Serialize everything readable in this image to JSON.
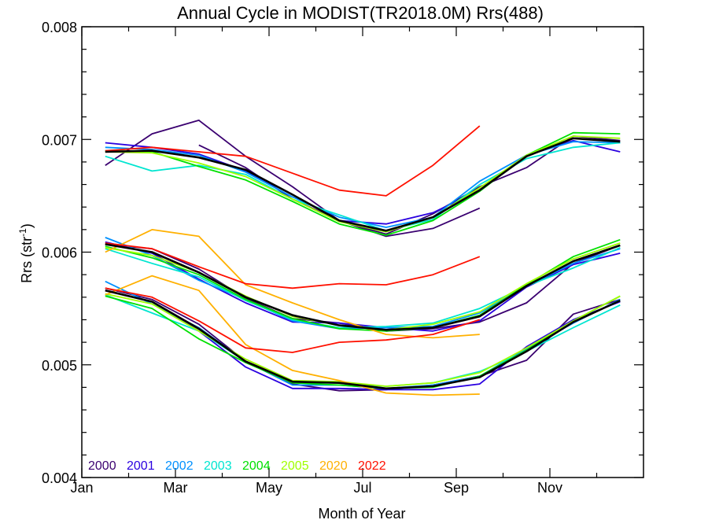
{
  "chart_data": {
    "type": "line",
    "title": "Annual Cycle in MODIST(TR2018.0M) Rrs(488)",
    "xlabel": "Month of Year",
    "ylabel": "Rrs (str",
    "ylabel_sup": "-1",
    "ylabel_close": ")",
    "xlim": [
      0,
      12
    ],
    "ylim": [
      0.004,
      0.008
    ],
    "x_ticks": [
      0,
      2,
      4,
      6,
      8,
      10
    ],
    "x_tick_labels": [
      "Jan",
      "Mar",
      "May",
      "Jul",
      "Sep",
      "Nov"
    ],
    "y_ticks": [
      0.004,
      0.005,
      0.006,
      0.007,
      0.008
    ],
    "y_tick_labels": [
      "0.004",
      "0.005",
      "0.006",
      "0.007",
      "0.008"
    ],
    "grid": false,
    "legend_position": "bottom-left",
    "legend": [
      {
        "name": "2000",
        "color": "#3a0070"
      },
      {
        "name": "2001",
        "color": "#2a00e0"
      },
      {
        "name": "2002",
        "color": "#0090ff"
      },
      {
        "name": "2003",
        "color": "#00e5d0"
      },
      {
        "name": "2004",
        "color": "#00e000"
      },
      {
        "name": "2005",
        "color": "#a0ff00"
      },
      {
        "name": "2020",
        "color": "#ffb000"
      },
      {
        "name": "2022",
        "color": "#ff1000"
      }
    ],
    "series": [
      {
        "group": "upper",
        "year": "2000",
        "color": "#3a0070",
        "x": [
          0.5,
          1.5,
          2.5,
          3.5,
          4.5,
          5.5,
          6.5,
          7.5,
          8.5,
          9.5,
          10.5,
          11.5
        ],
        "y": [
          0.00677,
          0.00705,
          0.00717,
          0.00685,
          0.00658,
          0.00628,
          0.00614,
          0.00621,
          0.00639,
          null,
          null,
          null
        ]
      },
      {
        "group": "upper",
        "year": "2000",
        "color": "#3a0070",
        "x": [
          2.5,
          3.5,
          4.5,
          5.5,
          6.5,
          7.5,
          8.5,
          9.5,
          10.5,
          11.5
        ],
        "y": [
          0.00695,
          0.00675,
          0.00647,
          0.00628,
          0.00616,
          0.00634,
          0.00658,
          0.00675,
          0.00703,
          0.00699
        ]
      },
      {
        "group": "upper",
        "year": "2001",
        "color": "#2a00e0",
        "x": [
          0.5,
          1.5,
          2.5,
          3.5,
          4.5,
          5.5,
          6.5,
          7.5,
          8.5,
          9.5,
          10.5,
          11.5
        ],
        "y": [
          0.00697,
          0.00693,
          0.00687,
          0.00672,
          0.00651,
          0.00628,
          0.00625,
          0.00635,
          0.00655,
          0.00686,
          0.00699,
          0.00689
        ]
      },
      {
        "group": "upper",
        "year": "2002",
        "color": "#0090ff",
        "x": [
          0.5,
          1.5,
          2.5,
          3.5,
          4.5,
          5.5,
          6.5,
          7.5,
          8.5,
          9.5,
          10.5,
          11.5
        ],
        "y": [
          0.00693,
          0.00691,
          0.00686,
          0.00671,
          0.00649,
          0.00631,
          0.00622,
          0.00631,
          0.00663,
          0.00686,
          0.00698,
          0.00697
        ]
      },
      {
        "group": "upper",
        "year": "2003",
        "color": "#00e5d0",
        "x": [
          0.5,
          1.5,
          2.5,
          3.5,
          4.5,
          5.5,
          6.5,
          7.5,
          8.5,
          9.5,
          10.5,
          11.5
        ],
        "y": [
          0.00685,
          0.00672,
          0.00677,
          0.00669,
          0.00647,
          0.00633,
          0.00619,
          0.00629,
          0.0066,
          0.00683,
          0.00693,
          0.00697
        ]
      },
      {
        "group": "upper",
        "year": "2004",
        "color": "#00e000",
        "x": [
          0.5,
          1.5,
          2.5,
          3.5,
          4.5,
          5.5,
          6.5,
          7.5,
          8.5,
          9.5,
          10.5,
          11.5
        ],
        "y": [
          0.0069,
          0.00689,
          0.00676,
          0.00664,
          0.00645,
          0.00625,
          0.00615,
          0.00628,
          0.00654,
          0.00686,
          0.00706,
          0.00705
        ]
      },
      {
        "group": "upper",
        "year": "2005",
        "color": "#a0ff00",
        "x": [
          0.5,
          1.5,
          2.5,
          3.5,
          4.5,
          5.5,
          6.5,
          7.5,
          8.5,
          9.5,
          10.5,
          11.5
        ],
        "y": [
          0.00689,
          0.00688,
          0.00679,
          0.00667,
          0.00647,
          0.00627,
          0.00618,
          0.00631,
          0.00657,
          0.00686,
          0.00703,
          0.00701
        ]
      },
      {
        "group": "upper",
        "year": "2022",
        "color": "#ff1000",
        "x": [
          0.5,
          1.5,
          2.5,
          3.5,
          4.5,
          5.5,
          6.5,
          7.5,
          8.5,
          9.5,
          10.5,
          11.5
        ],
        "y": [
          0.0069,
          0.00693,
          0.00689,
          0.00685,
          0.0067,
          0.00655,
          0.0065,
          0.00677,
          0.00712,
          null,
          null,
          null
        ]
      },
      {
        "group": "upper",
        "year": "mean",
        "color": "#000000",
        "x": [
          0.5,
          1.5,
          2.5,
          3.5,
          4.5,
          5.5,
          6.5,
          7.5,
          8.5,
          9.5,
          10.5,
          11.5
        ],
        "y": [
          0.00689,
          0.0069,
          0.00684,
          0.00673,
          0.00651,
          0.00628,
          0.00619,
          0.00631,
          0.00655,
          0.00685,
          0.00701,
          0.00698
        ]
      },
      {
        "group": "middle",
        "year": "2000",
        "color": "#3a0070",
        "x": [
          0.5,
          1.5,
          2.5,
          3.5,
          4.5,
          5.5,
          6.5,
          7.5,
          8.5,
          9.5,
          10.5,
          11.5
        ],
        "y": [
          0.00607,
          0.00603,
          0.00585,
          0.00559,
          0.00541,
          0.00537,
          0.0053,
          0.00532,
          0.00538,
          0.00555,
          0.0059,
          0.00606
        ]
      },
      {
        "group": "middle",
        "year": "2001",
        "color": "#2a00e0",
        "x": [
          0.5,
          1.5,
          2.5,
          3.5,
          4.5,
          5.5,
          6.5,
          7.5,
          8.5,
          9.5,
          10.5,
          11.5
        ],
        "y": [
          0.00609,
          0.00599,
          0.00576,
          0.00555,
          0.00538,
          0.00537,
          0.00533,
          0.0053,
          0.00539,
          0.00569,
          0.00589,
          0.00599
        ]
      },
      {
        "group": "middle",
        "year": "2002",
        "color": "#0090ff",
        "x": [
          0.5,
          1.5,
          2.5,
          3.5,
          4.5,
          5.5,
          6.5,
          7.5,
          8.5,
          9.5,
          10.5,
          11.5
        ],
        "y": [
          0.00613,
          0.00597,
          0.00575,
          0.00558,
          0.00539,
          0.00532,
          0.00533,
          0.00534,
          0.00546,
          0.0057,
          0.0059,
          0.00603
        ]
      },
      {
        "group": "middle",
        "year": "2003",
        "color": "#00e5d0",
        "x": [
          0.5,
          1.5,
          2.5,
          3.5,
          4.5,
          5.5,
          6.5,
          7.5,
          8.5,
          9.5,
          10.5,
          11.5
        ],
        "y": [
          0.00603,
          0.0059,
          0.00578,
          0.00557,
          0.0054,
          0.00533,
          0.00534,
          0.00537,
          0.0055,
          0.0057,
          0.00586,
          0.00604
        ]
      },
      {
        "group": "middle",
        "year": "2004",
        "color": "#00e000",
        "x": [
          0.5,
          1.5,
          2.5,
          3.5,
          4.5,
          5.5,
          6.5,
          7.5,
          8.5,
          9.5,
          10.5,
          11.5
        ],
        "y": [
          0.00605,
          0.00595,
          0.0058,
          0.00558,
          0.00541,
          0.00532,
          0.0053,
          0.00533,
          0.00544,
          0.00571,
          0.00596,
          0.00611
        ]
      },
      {
        "group": "middle",
        "year": "2005",
        "color": "#a0ff00",
        "x": [
          0.5,
          1.5,
          2.5,
          3.5,
          4.5,
          5.5,
          6.5,
          7.5,
          8.5,
          9.5,
          10.5,
          11.5
        ],
        "y": [
          0.00604,
          0.00597,
          0.00582,
          0.00561,
          0.00543,
          0.00535,
          0.00531,
          0.00536,
          0.00547,
          0.00572,
          0.00594,
          0.00608
        ]
      },
      {
        "group": "middle",
        "year": "2020",
        "color": "#ffb000",
        "x": [
          0.5,
          1.5,
          2.5,
          3.5,
          4.5,
          5.5,
          6.5,
          7.5,
          8.5,
          9.5,
          10.5,
          11.5
        ],
        "y": [
          0.006,
          0.0062,
          0.00614,
          0.00571,
          0.00555,
          0.0054,
          0.00527,
          0.00524,
          0.00527,
          null,
          null,
          null
        ]
      },
      {
        "group": "middle",
        "year": "2022",
        "color": "#ff1000",
        "x": [
          0.5,
          1.5,
          2.5,
          3.5,
          4.5,
          5.5,
          6.5,
          7.5,
          8.5,
          9.5,
          10.5,
          11.5
        ],
        "y": [
          0.00608,
          0.00603,
          0.00587,
          0.00572,
          0.00568,
          0.00572,
          0.00571,
          0.0058,
          0.00596,
          null,
          null,
          null
        ]
      },
      {
        "group": "middle",
        "year": "mean",
        "color": "#000000",
        "x": [
          0.5,
          1.5,
          2.5,
          3.5,
          4.5,
          5.5,
          6.5,
          7.5,
          8.5,
          9.5,
          10.5,
          11.5
        ],
        "y": [
          0.00607,
          0.006,
          0.00582,
          0.0056,
          0.00544,
          0.00535,
          0.00531,
          0.00533,
          0.00543,
          0.0057,
          0.00592,
          0.00606
        ]
      },
      {
        "group": "lower",
        "year": "2000",
        "color": "#3a0070",
        "x": [
          0.5,
          1.5,
          2.5,
          3.5,
          4.5,
          5.5,
          6.5,
          7.5,
          8.5,
          9.5,
          10.5,
          11.5
        ],
        "y": [
          0.00568,
          0.00558,
          0.00536,
          0.00503,
          0.00483,
          0.00477,
          0.00478,
          0.00482,
          0.0049,
          0.00504,
          0.00545,
          0.00558
        ]
      },
      {
        "group": "lower",
        "year": "2001",
        "color": "#2a00e0",
        "x": [
          0.5,
          1.5,
          2.5,
          3.5,
          4.5,
          5.5,
          6.5,
          7.5,
          8.5,
          9.5,
          10.5,
          11.5
        ],
        "y": [
          0.00566,
          0.00556,
          0.0053,
          0.00498,
          0.00479,
          0.00479,
          0.00478,
          0.00478,
          0.00483,
          0.00516,
          0.0054,
          0.00556
        ]
      },
      {
        "group": "lower",
        "year": "2002",
        "color": "#0090ff",
        "x": [
          0.5,
          1.5,
          2.5,
          3.5,
          4.5,
          5.5,
          6.5,
          7.5,
          8.5,
          9.5,
          10.5,
          11.5
        ],
        "y": [
          0.00574,
          0.00554,
          0.00533,
          0.00503,
          0.00482,
          0.00482,
          0.00479,
          0.00482,
          0.0049,
          0.00514,
          0.00537,
          0.00558
        ]
      },
      {
        "group": "lower",
        "year": "2003",
        "color": "#00e5d0",
        "x": [
          0.5,
          1.5,
          2.5,
          3.5,
          4.5,
          5.5,
          6.5,
          7.5,
          8.5,
          9.5,
          10.5,
          11.5
        ],
        "y": [
          0.00562,
          0.00546,
          0.0053,
          0.00503,
          0.00484,
          0.00484,
          0.00481,
          0.00484,
          0.00494,
          0.00512,
          0.00533,
          0.00553
        ]
      },
      {
        "group": "lower",
        "year": "2004",
        "color": "#00e000",
        "x": [
          0.5,
          1.5,
          2.5,
          3.5,
          4.5,
          5.5,
          6.5,
          7.5,
          8.5,
          9.5,
          10.5,
          11.5
        ],
        "y": [
          0.00561,
          0.0055,
          0.00523,
          0.00502,
          0.00484,
          0.00482,
          0.00479,
          0.0048,
          0.0049,
          0.00513,
          0.00539,
          0.00561
        ]
      },
      {
        "group": "lower",
        "year": "2005",
        "color": "#a0ff00",
        "x": [
          0.5,
          1.5,
          2.5,
          3.5,
          4.5,
          5.5,
          6.5,
          7.5,
          8.5,
          9.5,
          10.5,
          11.5
        ],
        "y": [
          0.00563,
          0.00554,
          0.0053,
          0.00505,
          0.00486,
          0.00485,
          0.00481,
          0.00484,
          0.00493,
          0.00515,
          0.00539,
          0.00561
        ]
      },
      {
        "group": "lower",
        "year": "2020",
        "color": "#ffb000",
        "x": [
          0.5,
          1.5,
          2.5,
          3.5,
          4.5,
          5.5,
          6.5,
          7.5,
          8.5,
          9.5,
          10.5,
          11.5
        ],
        "y": [
          0.00562,
          0.00579,
          0.00566,
          0.00518,
          0.00495,
          0.00486,
          0.00475,
          0.00473,
          0.00474,
          null,
          null,
          null
        ]
      },
      {
        "group": "lower",
        "year": "2022",
        "color": "#ff1000",
        "x": [
          0.5,
          1.5,
          2.5,
          3.5,
          4.5,
          5.5,
          6.5,
          7.5,
          8.5,
          9.5,
          10.5,
          11.5
        ],
        "y": [
          0.00568,
          0.0056,
          0.00539,
          0.00515,
          0.00511,
          0.0052,
          0.00522,
          0.00527,
          0.0054,
          null,
          null,
          null
        ]
      },
      {
        "group": "lower",
        "year": "mean",
        "color": "#000000",
        "x": [
          0.5,
          1.5,
          2.5,
          3.5,
          4.5,
          5.5,
          6.5,
          7.5,
          8.5,
          9.5,
          10.5,
          11.5
        ],
        "y": [
          0.00566,
          0.00556,
          0.00532,
          0.00503,
          0.00485,
          0.00484,
          0.00479,
          0.00481,
          0.00489,
          0.00512,
          0.00538,
          0.00557
        ]
      }
    ]
  }
}
